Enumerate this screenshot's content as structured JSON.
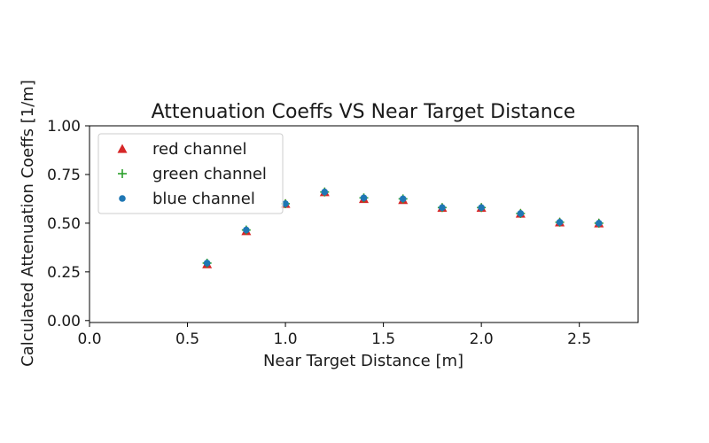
{
  "chart_data": {
    "type": "scatter",
    "title": "Attenuation Coeffs VS Near Target Distance",
    "xlabel": "Near Target Distance [m]",
    "ylabel": "Calculated Attenuation Coeffs [1/m]",
    "xlim": [
      0.0,
      2.8
    ],
    "ylim": [
      -0.01,
      1.0
    ],
    "xticks": [
      0.0,
      0.5,
      1.0,
      1.5,
      2.0,
      2.5
    ],
    "yticks": [
      0.0,
      0.25,
      0.5,
      0.75,
      1.0
    ],
    "xtick_labels": [
      "0.0",
      "0.5",
      "1.0",
      "1.5",
      "2.0",
      "2.5"
    ],
    "ytick_labels": [
      "0.00",
      "0.25",
      "0.50",
      "0.75",
      "1.00"
    ],
    "grid": false,
    "legend_position": "upper-left",
    "x": [
      0.6,
      0.8,
      1.0,
      1.2,
      1.4,
      1.6,
      1.8,
      2.0,
      2.2,
      2.4,
      2.6
    ],
    "series": [
      {
        "name": "red channel",
        "marker": "triangle",
        "color": "#d62728",
        "values": [
          0.29,
          0.46,
          0.6,
          0.66,
          0.625,
          0.62,
          0.58,
          0.58,
          0.55,
          0.505,
          0.5
        ]
      },
      {
        "name": "green channel",
        "marker": "plus",
        "color": "#2ca02c",
        "values": [
          0.295,
          0.465,
          0.6,
          0.66,
          0.63,
          0.625,
          0.58,
          0.58,
          0.55,
          0.505,
          0.5
        ]
      },
      {
        "name": "blue channel",
        "marker": "circle",
        "color": "#1f77b4",
        "values": [
          0.295,
          0.465,
          0.6,
          0.66,
          0.63,
          0.625,
          0.58,
          0.58,
          0.55,
          0.505,
          0.5
        ]
      }
    ]
  }
}
